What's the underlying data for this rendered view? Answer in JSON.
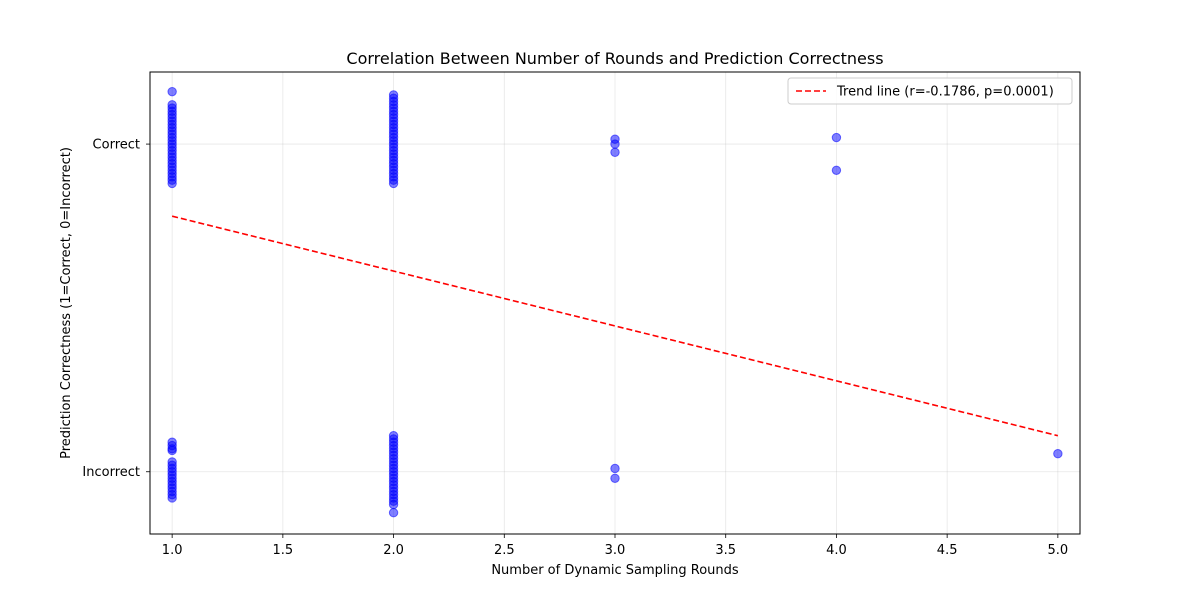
{
  "chart_data": {
    "type": "scatter",
    "title": "Correlation Between Number of Rounds and Prediction Correctness",
    "xlabel": "Number of Dynamic Sampling Rounds",
    "ylabel": "Prediction Correctness (1=Correct, 0=Incorrect)",
    "xlim": [
      0.9,
      5.1
    ],
    "ylim": [
      -0.19,
      1.22
    ],
    "grid": true,
    "legend_placement": "top-right",
    "x_ticks": [
      1.0,
      1.5,
      2.0,
      2.5,
      3.0,
      3.5,
      4.0,
      4.5,
      5.0
    ],
    "x_tick_labels": [
      "1.0",
      "1.5",
      "2.0",
      "2.5",
      "3.0",
      "3.5",
      "4.0",
      "4.5",
      "5.0"
    ],
    "y_ticks": [
      0,
      1
    ],
    "y_tick_labels": [
      "Incorrect",
      "Correct"
    ],
    "colors": {
      "points": "#0000ff",
      "trend": "#ff0000",
      "grid": "#b0b0b0"
    },
    "series": [
      {
        "kind": "points",
        "points": [
          [
            1,
            1.16
          ],
          [
            1,
            1.12
          ],
          [
            1,
            1.11
          ],
          [
            1,
            1.1
          ],
          [
            1,
            1.09
          ],
          [
            1,
            1.08
          ],
          [
            1,
            1.07
          ],
          [
            1,
            1.06
          ],
          [
            1,
            1.05
          ],
          [
            1,
            1.04
          ],
          [
            1,
            1.03
          ],
          [
            1,
            1.02
          ],
          [
            1,
            1.01
          ],
          [
            1,
            1.0
          ],
          [
            1,
            0.99
          ],
          [
            1,
            0.98
          ],
          [
            1,
            0.97
          ],
          [
            1,
            0.96
          ],
          [
            1,
            0.95
          ],
          [
            1,
            0.94
          ],
          [
            1,
            0.93
          ],
          [
            1,
            0.92
          ],
          [
            1,
            0.91
          ],
          [
            1,
            0.9
          ],
          [
            1,
            0.89
          ],
          [
            1,
            0.88
          ],
          [
            1,
            0.09
          ],
          [
            1,
            0.08
          ],
          [
            1,
            0.07
          ],
          [
            1,
            0.065
          ],
          [
            1,
            0.03
          ],
          [
            1,
            0.02
          ],
          [
            1,
            0.01
          ],
          [
            1,
            0.0
          ],
          [
            1,
            -0.01
          ],
          [
            1,
            -0.02
          ],
          [
            1,
            -0.03
          ],
          [
            1,
            -0.04
          ],
          [
            1,
            -0.05
          ],
          [
            1,
            -0.06
          ],
          [
            1,
            -0.07
          ],
          [
            1,
            -0.08
          ],
          [
            2,
            1.15
          ],
          [
            2,
            1.14
          ],
          [
            2,
            1.13
          ],
          [
            2,
            1.12
          ],
          [
            2,
            1.11
          ],
          [
            2,
            1.1
          ],
          [
            2,
            1.09
          ],
          [
            2,
            1.08
          ],
          [
            2,
            1.07
          ],
          [
            2,
            1.06
          ],
          [
            2,
            1.05
          ],
          [
            2,
            1.04
          ],
          [
            2,
            1.03
          ],
          [
            2,
            1.02
          ],
          [
            2,
            1.01
          ],
          [
            2,
            1.0
          ],
          [
            2,
            0.99
          ],
          [
            2,
            0.98
          ],
          [
            2,
            0.97
          ],
          [
            2,
            0.96
          ],
          [
            2,
            0.95
          ],
          [
            2,
            0.94
          ],
          [
            2,
            0.93
          ],
          [
            2,
            0.92
          ],
          [
            2,
            0.91
          ],
          [
            2,
            0.9
          ],
          [
            2,
            0.89
          ],
          [
            2,
            0.88
          ],
          [
            2,
            0.11
          ],
          [
            2,
            0.1
          ],
          [
            2,
            0.09
          ],
          [
            2,
            0.08
          ],
          [
            2,
            0.07
          ],
          [
            2,
            0.06
          ],
          [
            2,
            0.05
          ],
          [
            2,
            0.04
          ],
          [
            2,
            0.03
          ],
          [
            2,
            0.02
          ],
          [
            2,
            0.01
          ],
          [
            2,
            0.0
          ],
          [
            2,
            -0.01
          ],
          [
            2,
            -0.02
          ],
          [
            2,
            -0.03
          ],
          [
            2,
            -0.04
          ],
          [
            2,
            -0.05
          ],
          [
            2,
            -0.06
          ],
          [
            2,
            -0.07
          ],
          [
            2,
            -0.08
          ],
          [
            2,
            -0.09
          ],
          [
            2,
            -0.1
          ],
          [
            2,
            -0.125
          ],
          [
            3,
            1.015
          ],
          [
            3,
            1.0
          ],
          [
            3,
            0.975
          ],
          [
            3,
            0.01
          ],
          [
            3,
            -0.02
          ],
          [
            4,
            1.02
          ],
          [
            4,
            0.92
          ],
          [
            5,
            0.055
          ]
        ]
      },
      {
        "kind": "line",
        "name": "Trend line (r=-0.1786, p=0.0001)",
        "x": [
          1,
          5
        ],
        "y": [
          0.78,
          0.11
        ]
      }
    ]
  }
}
